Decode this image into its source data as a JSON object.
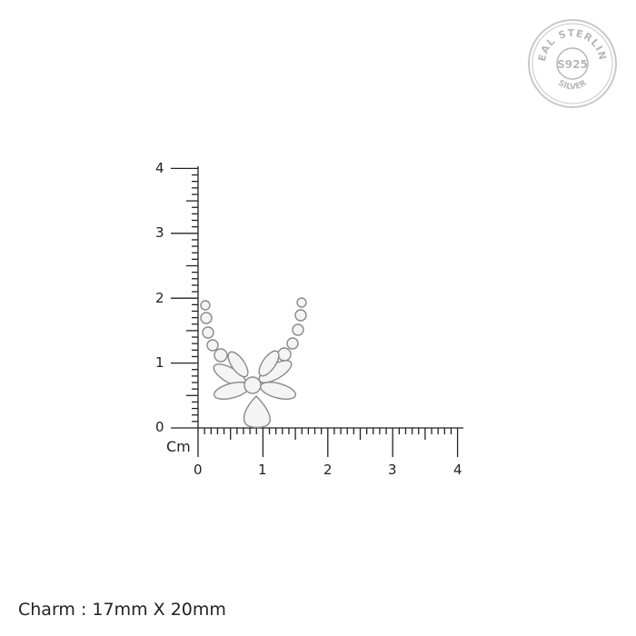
{
  "seal": {
    "outer_text": "REAL STERLING",
    "center_text": "S925",
    "bottom_text": "SILVER"
  },
  "ruler": {
    "unit": "Cm",
    "y_labels": [
      "0",
      "1",
      "2",
      "3",
      "4"
    ],
    "x_labels": [
      "0",
      "1",
      "2",
      "3",
      "4"
    ]
  },
  "caption": "Charm : 17mm X 20mm",
  "colors": {
    "ink": "#222222",
    "seal": "#b8b8b8",
    "metal": "#9a9a9a"
  }
}
